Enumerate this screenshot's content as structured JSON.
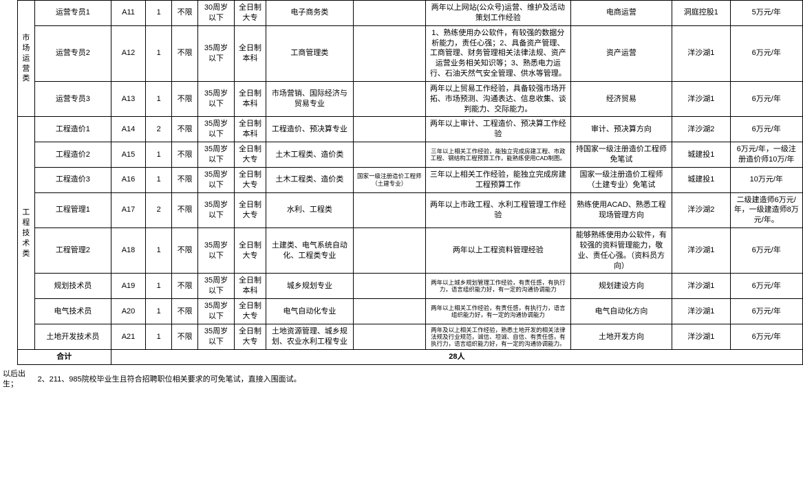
{
  "categories": [
    {
      "name": "市\n场\n运\n营\n类"
    },
    {
      "name": "工\n程\n技\n术\n类"
    }
  ],
  "rows": [
    {
      "pos": "运营专员1",
      "code": "A11",
      "cnt": "1",
      "sex": "不限",
      "age": "30周岁以下",
      "edu": "全日制大专",
      "major": "电子商务类",
      "cert": "",
      "req": "两年以上网站(公众号)运营、维护及活动策划工作经验",
      "dir": "电商运营",
      "loc": "洞庭控股1",
      "sal": "5万元/年"
    },
    {
      "pos": "运营专员2",
      "code": "A12",
      "cnt": "1",
      "sex": "不限",
      "age": "35周岁以下",
      "edu": "全日制本科",
      "major": "工商管理类",
      "cert": "",
      "req": "1、熟练使用办公软件，有较强的数据分析能力，责任心强；2、具备资产管理、工商管理、财务管理相关法律法规、资产运营业务相关知识等；3、熟悉电力运行、石油天然气安全管理、供水等管理。",
      "dir": "资产运营",
      "loc": "洋沙湖1",
      "sal": "6万元/年"
    },
    {
      "pos": "运营专员3",
      "code": "A13",
      "cnt": "1",
      "sex": "不限",
      "age": "35周岁以下",
      "edu": "全日制本科",
      "major": "市场营销、国际经济与贸易专业",
      "cert": "",
      "req": "两年以上贸易工作经验，具备较强市场开拓、市场预测、沟通表达、信息收集、谈判能力、交际能力。",
      "dir": "经济贸易",
      "loc": "洋沙湖1",
      "sal": "6万元/年"
    },
    {
      "pos": "工程造价1",
      "code": "A14",
      "cnt": "2",
      "sex": "不限",
      "age": "35周岁以下",
      "edu": "全日制本科",
      "major": "工程造价、预决算专业",
      "cert": "",
      "req": "两年以上审计、工程造价、预决算工作经验",
      "dir": "审计、预决算方向",
      "loc": "洋沙湖2",
      "sal": "6万元/年"
    },
    {
      "pos": "工程造价2",
      "code": "A15",
      "cnt": "1",
      "sex": "不限",
      "age": "35周岁以下",
      "edu": "全日制大专",
      "major": "土木工程类、造价类",
      "cert": "",
      "req_tight": true,
      "req": "三年以上相关工作经验，能独立完成房建工程、市政工程、钢结构工程预算工作，能熟练使用CAD制图。",
      "dir": "持国家一级注册造价工程师免笔试",
      "loc": "城建投1",
      "sal": "6万元/年，一级注册造价师10万/年"
    },
    {
      "pos": "工程造价3",
      "code": "A16",
      "cnt": "1",
      "sex": "不限",
      "age": "35周岁以下",
      "edu": "全日制大专",
      "major": "土木工程类、造价类",
      "cert": "国家一级注册造价工程师（土建专业）",
      "req": "三年以上相关工作经验，能独立完成房建工程预算工作",
      "dir": "国家一级注册造价工程师（土建专业）免笔试",
      "loc": "城建投1",
      "sal": "10万元/年"
    },
    {
      "pos": "工程管理1",
      "code": "A17",
      "cnt": "2",
      "sex": "不限",
      "age": "35周岁以下",
      "edu": "全日制大专",
      "major": "水利、工程类",
      "cert": "",
      "req": "两年以上市政工程、水利工程管理工作经验",
      "dir": "熟练使用ACAD、熟悉工程现场管理方向",
      "loc": "洋沙湖2",
      "sal": "二级建造师6万元/年，一级建造师8万元/年。"
    },
    {
      "pos": "工程管理2",
      "code": "A18",
      "cnt": "1",
      "sex": "不限",
      "age": "35周岁以下",
      "edu": "全日制大专",
      "major": "土建类、电气系统自动化、工程类专业",
      "cert": "",
      "req": "两年以上工程资料管理经验",
      "dir": "能够熟练使用办公软件，有较强的资料管理能力，敬业、责任心强。（资料员方向）",
      "loc": "洋沙湖1",
      "sal": "6万元/年"
    },
    {
      "pos": "规划技术员",
      "code": "A19",
      "cnt": "1",
      "sex": "不限",
      "age": "35周岁以下",
      "edu": "全日制本科",
      "major": "城乡规划专业",
      "cert": "",
      "req_tight": true,
      "req": "两年以上城乡规划管理工作经验，有责任感，有执行力，语言组织能力好，有一定的沟通协调能力",
      "dir": "规划建设方向",
      "loc": "洋沙湖1",
      "sal": "6万元/年"
    },
    {
      "pos": "电气技术员",
      "code": "A20",
      "cnt": "1",
      "sex": "不限",
      "age": "35周岁以下",
      "edu": "全日制大专",
      "major": "电气自动化专业",
      "cert": "",
      "req_tight": true,
      "req": "两年以上相关工作经验，有责任感，有执行力，语言组织能力好，有一定的沟通协调能力",
      "dir": "电气自动化方向",
      "loc": "洋沙湖1",
      "sal": "6万元/年"
    },
    {
      "pos": "土地开发技术员",
      "code": "A21",
      "cnt": "1",
      "sex": "不限",
      "age": "35周岁以下",
      "edu": "全日制大专",
      "major": "土地资源管理、城乡规划、农业水利工程专业",
      "cert": "",
      "req_tight": true,
      "req": "两年及以上相关工作经验，熟悉土地开发的相关法律法规及行业规范，诚信、坦诚、自信、有责任感，有执行力，语言组织能力好，有一定的沟通协调能力。",
      "dir": "土地开发方向",
      "loc": "洋沙湖1",
      "sal": "6万元/年"
    }
  ],
  "total": {
    "label": "合计",
    "value": "28人"
  },
  "footer": {
    "left": "以后出生；",
    "right": "2、211、985院校毕业生且符合招聘职位相关要求的可免笔试，直接入围面试。"
  }
}
